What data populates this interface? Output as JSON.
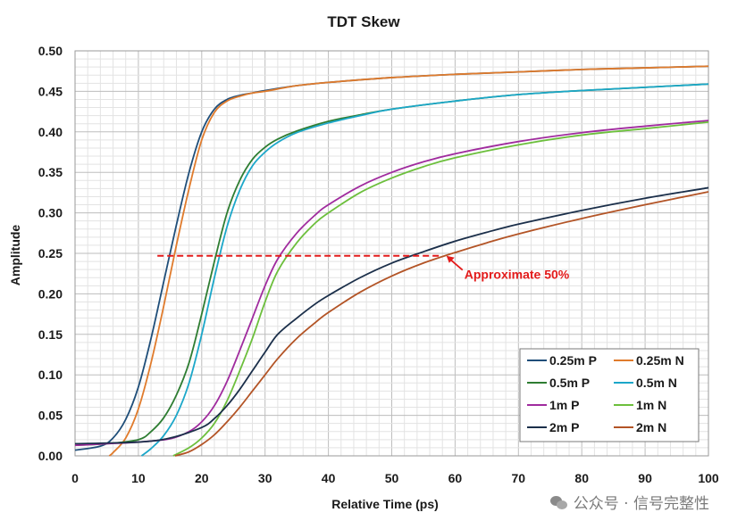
{
  "chart_data": {
    "type": "line",
    "title": "TDT Skew",
    "xlabel": "Relative Time (ps)",
    "ylabel": "Amplitude",
    "xlim": [
      0,
      100
    ],
    "ylim": [
      0,
      0.5
    ],
    "x_ticks": [
      0,
      10,
      20,
      30,
      40,
      50,
      60,
      70,
      80,
      90,
      100
    ],
    "y_ticks": [
      "0.00",
      "0.05",
      "0.10",
      "0.15",
      "0.20",
      "0.25",
      "0.30",
      "0.35",
      "0.40",
      "0.45",
      "0.50"
    ],
    "grid": true,
    "legend_position": "bottom-right",
    "series": [
      {
        "name": "0.25m P",
        "color": "#1f4e79",
        "x": [
          0,
          4,
          6,
          8,
          10,
          12,
          14,
          16,
          18,
          20,
          22,
          24,
          26,
          28,
          30,
          35,
          40,
          50,
          60,
          70,
          80,
          90,
          100
        ],
        "y": [
          0.007,
          0.012,
          0.022,
          0.045,
          0.085,
          0.145,
          0.215,
          0.285,
          0.35,
          0.4,
          0.428,
          0.44,
          0.445,
          0.448,
          0.451,
          0.457,
          0.461,
          0.467,
          0.471,
          0.474,
          0.477,
          0.479,
          0.481
        ]
      },
      {
        "name": "0.25m N",
        "color": "#e07b2c",
        "x": [
          5.4,
          6,
          8,
          10,
          12,
          14,
          16,
          18,
          20,
          22,
          24,
          26,
          28,
          30,
          35,
          40,
          50,
          60,
          70,
          80,
          90,
          100
        ],
        "y": [
          0,
          0.004,
          0.022,
          0.058,
          0.115,
          0.185,
          0.26,
          0.33,
          0.39,
          0.424,
          0.438,
          0.444,
          0.448,
          0.45,
          0.457,
          0.461,
          0.467,
          0.471,
          0.474,
          0.477,
          0.479,
          0.481
        ]
      },
      {
        "name": "0.5m P",
        "color": "#2e7d32",
        "x": [
          0,
          5,
          10,
          12,
          14,
          16,
          18,
          20,
          22,
          24,
          26,
          28,
          30,
          32,
          35,
          40,
          45,
          50,
          60,
          70,
          80,
          90,
          100
        ],
        "y": [
          0.013,
          0.015,
          0.02,
          0.03,
          0.047,
          0.075,
          0.115,
          0.175,
          0.24,
          0.3,
          0.34,
          0.366,
          0.381,
          0.391,
          0.401,
          0.413,
          0.421,
          0.428,
          0.438,
          0.446,
          0.451,
          0.455,
          0.459
        ]
      },
      {
        "name": "0.5m N",
        "color": "#1ba7c9",
        "x": [
          10.5,
          12,
          14,
          16,
          18,
          20,
          22,
          24,
          26,
          28,
          30,
          32,
          35,
          40,
          45,
          50,
          60,
          70,
          80,
          90,
          100
        ],
        "y": [
          0,
          0.009,
          0.025,
          0.05,
          0.09,
          0.15,
          0.22,
          0.283,
          0.328,
          0.358,
          0.375,
          0.387,
          0.399,
          0.411,
          0.42,
          0.428,
          0.438,
          0.446,
          0.451,
          0.455,
          0.459
        ]
      },
      {
        "name": "1m P",
        "color": "#a02b9e",
        "x": [
          0,
          5,
          10,
          15,
          18,
          20,
          22,
          24,
          26,
          28,
          30,
          32,
          35,
          38,
          40,
          45,
          50,
          55,
          60,
          70,
          80,
          90,
          100
        ],
        "y": [
          0.013,
          0.015,
          0.017,
          0.021,
          0.03,
          0.042,
          0.062,
          0.092,
          0.13,
          0.17,
          0.21,
          0.243,
          0.275,
          0.298,
          0.31,
          0.333,
          0.35,
          0.363,
          0.373,
          0.388,
          0.399,
          0.407,
          0.414
        ]
      },
      {
        "name": "1m N",
        "color": "#6cbf3c",
        "x": [
          15.5,
          18,
          20,
          22,
          24,
          26,
          28,
          30,
          32,
          35,
          38,
          40,
          45,
          50,
          55,
          60,
          70,
          80,
          90,
          100
        ],
        "y": [
          0,
          0.01,
          0.022,
          0.04,
          0.068,
          0.105,
          0.145,
          0.19,
          0.228,
          0.263,
          0.288,
          0.3,
          0.325,
          0.343,
          0.357,
          0.368,
          0.384,
          0.396,
          0.404,
          0.412
        ]
      },
      {
        "name": "2m P",
        "color": "#1b2f4a",
        "x": [
          0,
          10,
          15,
          20,
          22,
          24,
          26,
          28,
          30,
          32,
          35,
          38,
          40,
          45,
          50,
          55,
          60,
          65,
          70,
          80,
          90,
          100
        ],
        "y": [
          0.015,
          0.017,
          0.022,
          0.035,
          0.046,
          0.062,
          0.082,
          0.105,
          0.128,
          0.15,
          0.17,
          0.188,
          0.198,
          0.22,
          0.238,
          0.252,
          0.265,
          0.276,
          0.286,
          0.303,
          0.318,
          0.331
        ]
      },
      {
        "name": "2m N",
        "color": "#b35426",
        "x": [
          15.8,
          18,
          20,
          22,
          24,
          26,
          28,
          30,
          32,
          35,
          38,
          40,
          45,
          50,
          55,
          60,
          65,
          70,
          80,
          90,
          100
        ],
        "y": [
          0,
          0.005,
          0.014,
          0.026,
          0.042,
          0.06,
          0.08,
          0.1,
          0.12,
          0.145,
          0.165,
          0.177,
          0.202,
          0.222,
          0.238,
          0.251,
          0.263,
          0.274,
          0.293,
          0.31,
          0.326
        ]
      }
    ],
    "reference_line": {
      "x_start": 13,
      "x_end": 58,
      "y": 0.247,
      "color": "#e31b1b"
    },
    "annotation": {
      "text": "Approximate 50%",
      "arrow_to_x": 58.5,
      "arrow_to_y": 0.247,
      "color": "#e31b1b"
    }
  },
  "watermark": {
    "text": "公众号 · 信号完整性"
  }
}
